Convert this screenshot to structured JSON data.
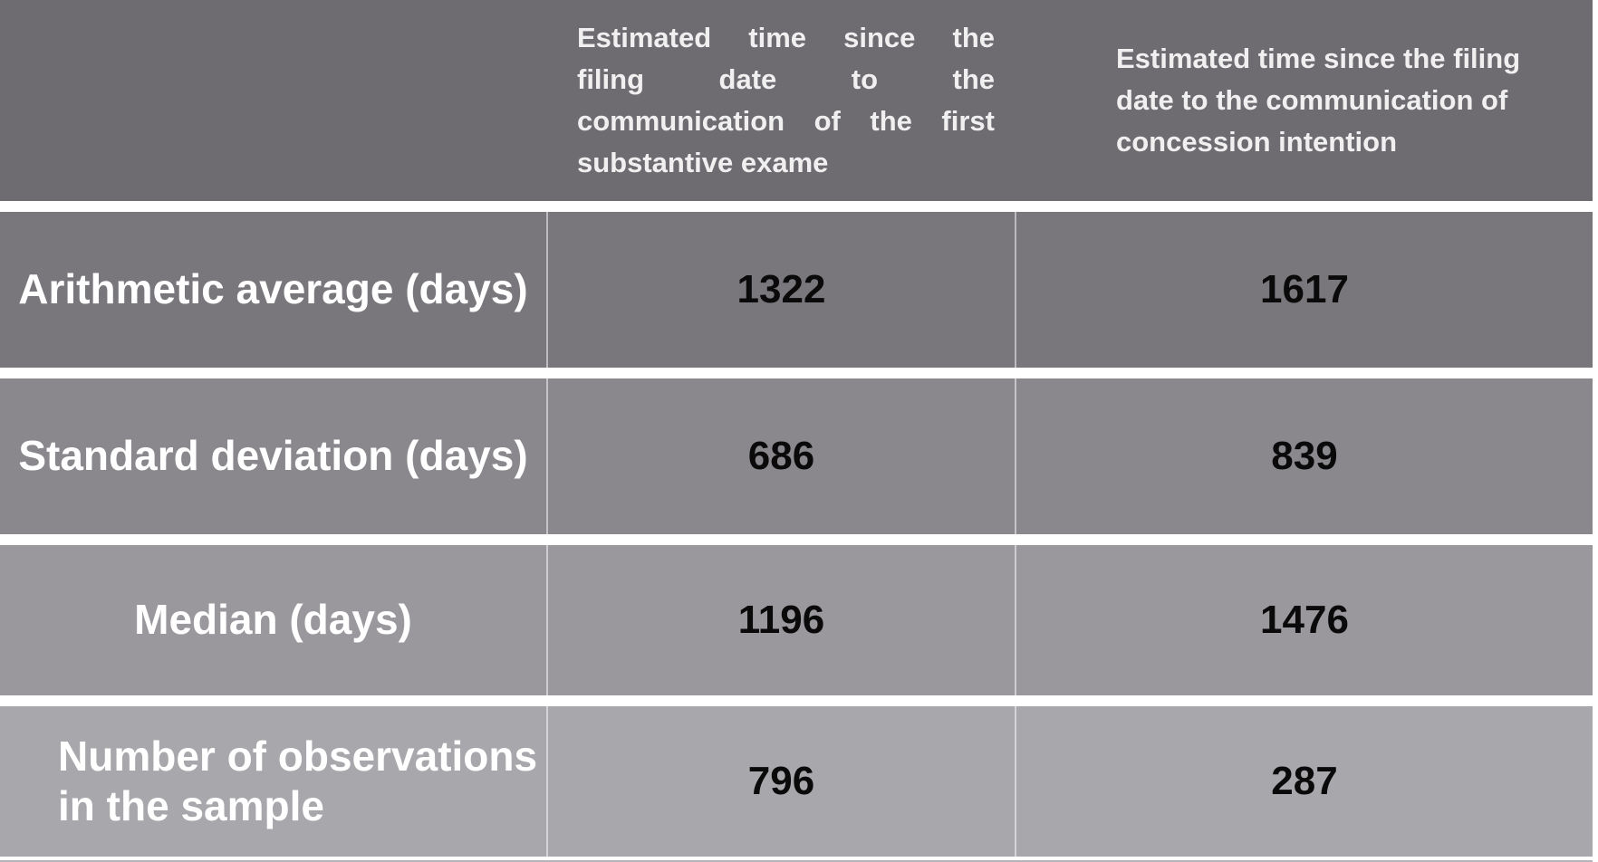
{
  "table": {
    "header": {
      "col1": "",
      "col2": {
        "text": "Estimated time since the filing date to the communication of the first substantive exame",
        "lines": [
          "Estimated time since the",
          "filing date to the",
          "communication of the first",
          "substantive exame"
        ]
      },
      "col3": {
        "text": "Estimated time since the filing date to the communication of concession intention",
        "lines": [
          "Estimated time since the filing",
          "date to the communication of",
          "concession intention"
        ]
      }
    },
    "rows": [
      {
        "label": "Arithmetic average (days)",
        "values": [
          "1322",
          "1617"
        ]
      },
      {
        "label": "Standard deviation (days)",
        "values": [
          "686",
          "839"
        ]
      },
      {
        "label": "Median (days)",
        "values": [
          "1196",
          "1476"
        ]
      },
      {
        "label": "Number of observations in the sample",
        "lines": [
          "Number of observations",
          "in the sample"
        ],
        "values": [
          "796",
          "287"
        ]
      }
    ],
    "colors": {
      "header_bg": "#6E6B71",
      "row1_bg": "#7A777C",
      "row2_bg": "#8A888D",
      "row3_bg": "#9A989D",
      "row4_bg": "#A8A7AB",
      "partial_row_bg": "#B5B4B8",
      "gap": "#FFFFFF",
      "header_text": "#F1F0F1",
      "label_text": "#FFFFFF",
      "value_text": "#0A0A0A"
    }
  },
  "chart_data": {
    "type": "table",
    "title": "",
    "columns": [
      "",
      "Estimated time since the filing date to the communication of the first substantive exame",
      "Estimated time since the filing date to the communication of concession intention"
    ],
    "row_labels": [
      "Arithmetic average (days)",
      "Standard deviation (days)",
      "Median (days)",
      "Number of observations in the sample"
    ],
    "rows": [
      [
        "Arithmetic average (days)",
        1322,
        1617
      ],
      [
        "Standard deviation (days)",
        686,
        839
      ],
      [
        "Median (days)",
        1196,
        1476
      ],
      [
        "Number of observations in the sample",
        796,
        287
      ]
    ]
  }
}
